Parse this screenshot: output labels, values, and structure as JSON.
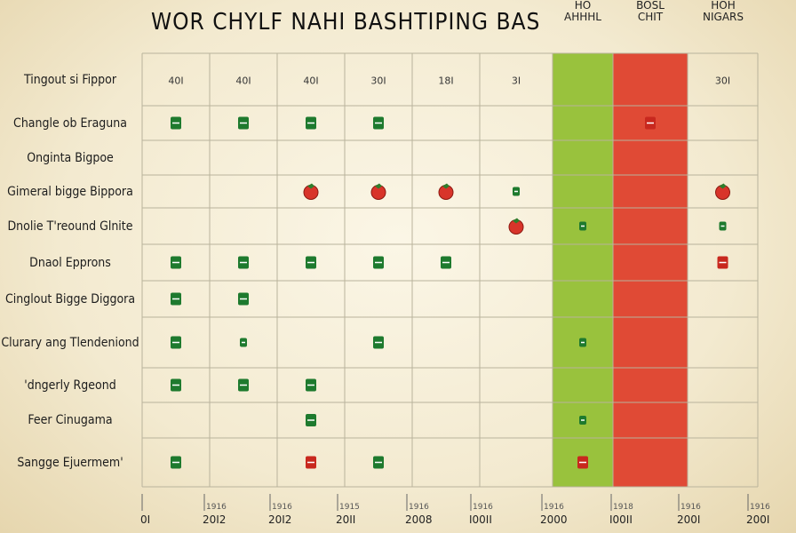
{
  "title": "WOR CHYLF NAHI BASHTIPING BAS",
  "column_headers": {
    "green": "HO\nAHHHL",
    "red": "BOSL\nCHIT",
    "last": "HOH\nNIGARS"
  },
  "header_row_label": "Tingout si Fippor",
  "colors": {
    "green_band": "#99c23d",
    "red_band": "#e04a35",
    "mark_green": "#1e7a2e",
    "mark_red": "#c8281e",
    "grid": "#b9b39c",
    "background": "#f5eed8"
  },
  "chart_data": {
    "type": "table",
    "title": "WOR CHYLF NAHI BASHTIPING BAS",
    "column_labels_top": [
      "40I",
      "40I",
      "40I",
      "30I",
      "18I",
      "3I",
      "",
      "",
      "30I"
    ],
    "rows": [
      {
        "label": "Changle ob Eraguna",
        "cells": [
          "G",
          "G",
          "G",
          "G",
          "",
          "",
          "",
          "r",
          ""
        ]
      },
      {
        "label": "Onginta Bigpoe",
        "cells": [
          "",
          "",
          "",
          "",
          "",
          "",
          "",
          "",
          ""
        ]
      },
      {
        "label": "Gimeral bigge Bippora",
        "cells": [
          "",
          "",
          "T",
          "T",
          "T",
          "g",
          "",
          "",
          "T"
        ]
      },
      {
        "label": "Dnolie T'reound Glnite",
        "cells": [
          "",
          "",
          "",
          "",
          "",
          "T",
          "g",
          "",
          "g"
        ]
      },
      {
        "label": "Dnaol Epprons",
        "cells": [
          "G",
          "G",
          "G",
          "G",
          "G",
          "",
          "",
          "",
          "r"
        ]
      },
      {
        "label": "Cinglout Bigge Diggora",
        "cells": [
          "G",
          "G",
          "",
          "",
          "",
          "",
          "",
          "",
          ""
        ]
      },
      {
        "label": "Clurary ang Tlendeniond",
        "cells": [
          "G",
          "g",
          "",
          "G",
          "",
          "",
          "g",
          "",
          ""
        ]
      },
      {
        "label": "'dngerly Rgeond",
        "cells": [
          "G",
          "G",
          "G",
          "",
          "",
          "",
          "",
          "",
          ""
        ]
      },
      {
        "label": "Feer Cinugama",
        "cells": [
          "",
          "",
          "G",
          "",
          "",
          "",
          "g",
          "",
          ""
        ]
      },
      {
        "label": "Sangge Ejuermem'",
        "cells": [
          "G",
          "",
          "r",
          "G",
          "",
          "",
          "r",
          "",
          ""
        ]
      }
    ],
    "legend": {
      "G": "green mark",
      "g": "small green mark",
      "r": "red mark",
      "T": "tomato"
    },
    "bands": [
      {
        "column": 6,
        "color": "green"
      },
      {
        "column": 7,
        "color": "red"
      }
    ],
    "x_ticks": [
      "0I",
      "20I2",
      "20I2",
      "20II",
      "2008",
      "I00II",
      "2000",
      "I00II",
      "200I",
      "200I"
    ],
    "x_ticks_small": [
      "",
      "1916",
      "1916",
      "1915",
      "1916",
      "1916",
      "1916",
      "1918",
      "1916",
      "1916"
    ]
  }
}
